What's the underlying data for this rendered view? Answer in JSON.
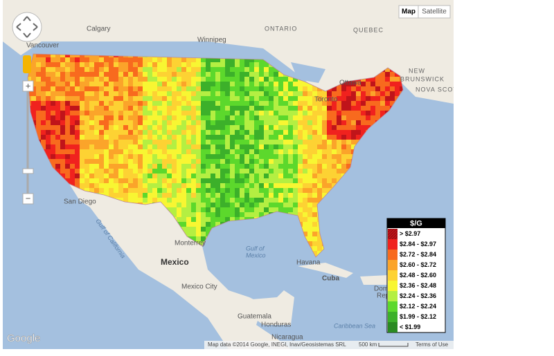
{
  "map_type_buttons": [
    "Map",
    "Satellite"
  ],
  "controls": {
    "zoom_in": "+",
    "zoom_out": "−"
  },
  "place_labels": [
    "Calgary",
    "Winnipeg",
    "ONTARIO",
    "QUEBEC",
    "Vancouver",
    "Ottawa",
    "Toronto",
    "NEW",
    "BRUNSWICK",
    "NOVA SCOT",
    "San Diego",
    "Monterrey",
    "Gulf of",
    "Mexico",
    "Mexico",
    "Mexico City",
    "Havana",
    "Cuba",
    "Guatemala",
    "Honduras",
    "Nicaragua",
    "Caribbean Sea",
    "Gulf of California",
    "Dom",
    "Rep"
  ],
  "legend": {
    "title": "$/G",
    "items": [
      {
        "label": "> $2.97",
        "color": "#c0141a"
      },
      {
        "label": "$2.84 - $2.97",
        "color": "#f0221e"
      },
      {
        "label": "$2.72 - $2.84",
        "color": "#f86a1e"
      },
      {
        "label": "$2.60 - $2.72",
        "color": "#fba42a"
      },
      {
        "label": "$2.48 - $2.60",
        "color": "#fdd233"
      },
      {
        "label": "$2.36 - $2.48",
        "color": "#f8f632"
      },
      {
        "label": "$2.24 - $2.36",
        "color": "#b4ef42"
      },
      {
        "label": "$2.12 - $2.24",
        "color": "#5cd82c"
      },
      {
        "label": "$1.99 - $2.12",
        "color": "#3cb02a"
      },
      {
        "label": "< $1.99",
        "color": "#2a8a22"
      }
    ]
  },
  "footer": {
    "logo": "Google",
    "attribution": "Map data ©2014 Google, INEGI, Inav/Geosistemas SRL",
    "scale": "500 km",
    "terms": "Terms of Use"
  }
}
